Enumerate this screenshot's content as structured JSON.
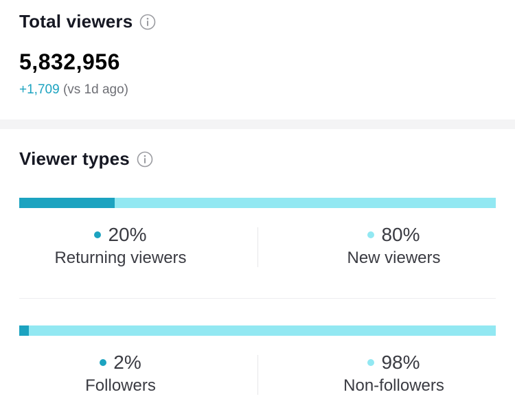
{
  "total_viewers": {
    "title": "Total viewers",
    "info_icon": "info-circle-icon",
    "value": "5,832,956",
    "delta": "+1,709",
    "delta_note": "(vs 1d ago)"
  },
  "viewer_types": {
    "title": "Viewer types",
    "info_icon": "info-circle-icon",
    "breakdowns": [
      {
        "primary_percent": 20,
        "left": {
          "pct_label": "20%",
          "label": "Returning viewers"
        },
        "right": {
          "pct_label": "80%",
          "label": "New viewers"
        }
      },
      {
        "primary_percent": 2,
        "left": {
          "pct_label": "2%",
          "label": "Followers"
        },
        "right": {
          "pct_label": "98%",
          "label": "Non-followers"
        }
      }
    ]
  },
  "colors": {
    "primary": "#1ca3c0",
    "secondary": "#92e8f2",
    "delta_positive": "#1ca3c0"
  }
}
